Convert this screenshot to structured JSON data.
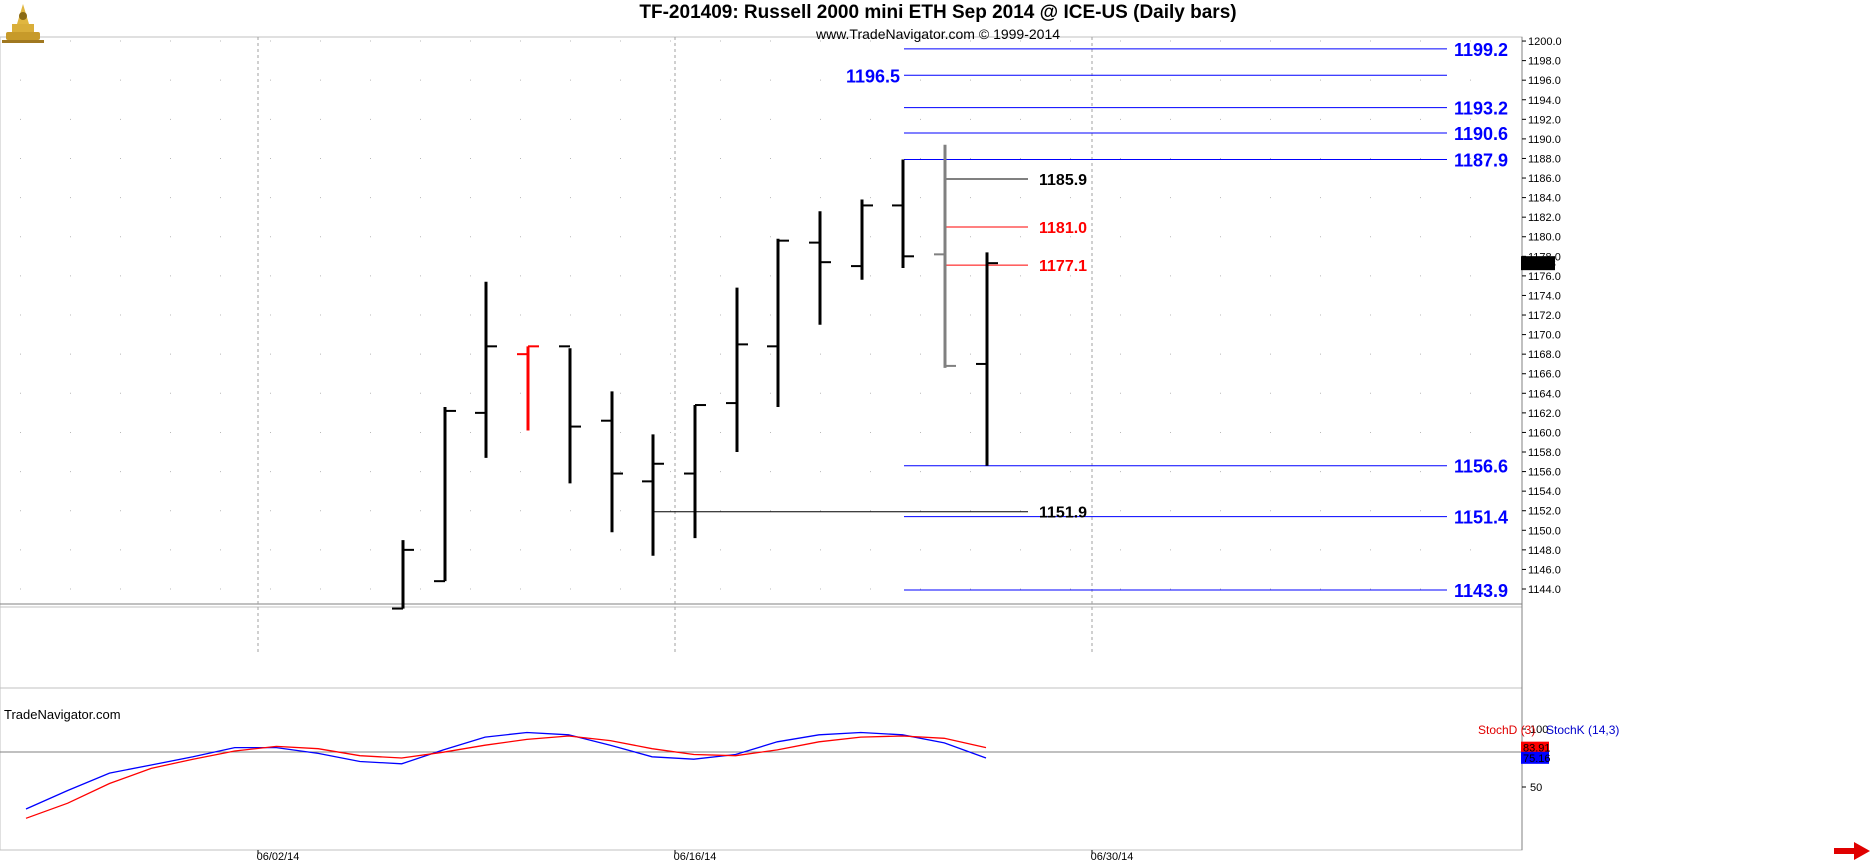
{
  "header": {
    "title": "TF-201409:  Russell 2000 mini ETH Sep 2014 @ ICE-US  (Daily bars)",
    "subtitle": "www.TradeNavigator.com © 1999-2014"
  },
  "watermark": "TradeNavigator.com",
  "chart_data": {
    "type": "ohlc",
    "ylim": [
      1142,
      1201
    ],
    "y_ticks": [
      "1144.0",
      "1146.0",
      "1148.0",
      "1150.0",
      "1152.0",
      "1154.0",
      "1156.0",
      "1158.0",
      "1160.0",
      "1162.0",
      "1164.0",
      "1166.0",
      "1168.0",
      "1170.0",
      "1172.0",
      "1174.0",
      "1176.0",
      "1178.0",
      "1180.0",
      "1182.0",
      "1184.0",
      "1186.0",
      "1188.0",
      "1190.0",
      "1192.0",
      "1194.0",
      "1196.0",
      "1198.0",
      "1200.0"
    ],
    "x_ticks": [
      "06/02/14",
      "06/16/14",
      "06/30/14"
    ],
    "last_price": "1177.3",
    "bars": [
      {
        "o": 1142.0,
        "h": 1149.0,
        "l": 1142.0,
        "c": 1148.0,
        "color": "#000000"
      },
      {
        "o": 1144.8,
        "h": 1162.6,
        "l": 1144.8,
        "c": 1162.2,
        "color": "#000000"
      },
      {
        "o": 1162.0,
        "h": 1175.4,
        "l": 1157.4,
        "c": 1168.8,
        "color": "#000000"
      },
      {
        "o": 1168.0,
        "h": 1168.8,
        "l": 1160.2,
        "c": 1168.8,
        "color": "#ff0000"
      },
      {
        "o": 1168.8,
        "h": 1168.6,
        "l": 1154.8,
        "c": 1160.6,
        "color": "#000000"
      },
      {
        "o": 1161.2,
        "h": 1164.2,
        "l": 1149.8,
        "c": 1155.8,
        "color": "#000000"
      },
      {
        "o": 1155.0,
        "h": 1159.8,
        "l": 1147.4,
        "c": 1156.8,
        "color": "#000000"
      },
      {
        "o": 1155.8,
        "h": 1162.8,
        "l": 1149.2,
        "c": 1162.8,
        "color": "#000000"
      },
      {
        "o": 1163.0,
        "h": 1174.8,
        "l": 1158.0,
        "c": 1169.0,
        "color": "#000000"
      },
      {
        "o": 1168.8,
        "h": 1179.8,
        "l": 1162.6,
        "c": 1179.6,
        "color": "#000000"
      },
      {
        "o": 1179.4,
        "h": 1182.6,
        "l": 1171.0,
        "c": 1177.4,
        "color": "#000000"
      },
      {
        "o": 1177.0,
        "h": 1183.8,
        "l": 1175.6,
        "c": 1183.2,
        "color": "#000000"
      },
      {
        "o": 1183.2,
        "h": 1187.9,
        "l": 1176.8,
        "c": 1178.0,
        "color": "#000000"
      },
      {
        "o": 1178.2,
        "h": 1189.4,
        "l": 1166.6,
        "c": 1166.8,
        "color": "#808080"
      },
      {
        "o": 1167.0,
        "h": 1178.4,
        "l": 1156.6,
        "c": 1177.3,
        "color": "#000000"
      }
    ],
    "levels_right": [
      {
        "value": 1199.2,
        "label": "1199.2",
        "color": "#0000ff"
      },
      {
        "value": 1193.2,
        "label": "1193.2",
        "color": "#0000ff"
      },
      {
        "value": 1190.6,
        "label": "1190.6",
        "color": "#0000ff"
      },
      {
        "value": 1187.9,
        "label": "1187.9",
        "color": "#0000ff"
      },
      {
        "value": 1156.6,
        "label": "1156.6",
        "color": "#0000ff"
      },
      {
        "value": 1151.4,
        "label": "1151.4",
        "color": "#0000ff"
      },
      {
        "value": 1143.9,
        "label": "1143.9",
        "color": "#0000ff"
      }
    ],
    "level_left": {
      "value": 1196.5,
      "label": "1196.5",
      "color": "#0000ff"
    },
    "levels_short": [
      {
        "value": 1185.9,
        "label": "1185.9",
        "color": "#000000"
      },
      {
        "value": 1181.0,
        "label": "1181.0",
        "color": "#ff0000"
      },
      {
        "value": 1177.1,
        "label": "1177.1",
        "color": "#ff0000"
      },
      {
        "value": 1151.9,
        "label": "1151.9",
        "color": "#000000"
      }
    ],
    "stochastic": {
      "legend_d": "StochD (3)",
      "legend_k": "StochK (14,3)",
      "ticks": [
        "100",
        "50"
      ],
      "value_d": "83.91",
      "value_k": "75.16",
      "stochD": [
        23,
        36,
        53,
        66,
        74,
        81,
        85,
        83,
        77,
        75,
        80,
        86,
        91,
        94,
        90,
        83,
        78,
        77,
        82,
        89,
        93,
        94,
        92,
        84
      ],
      "stochK": [
        31,
        47,
        62,
        69,
        76,
        84,
        84,
        79,
        72,
        70,
        82,
        93,
        97,
        95,
        86,
        76,
        74,
        78,
        89,
        95,
        97,
        95,
        88,
        75
      ],
      "colors": {
        "stochD": "#ff0000",
        "stochK": "#0000ff"
      }
    }
  }
}
